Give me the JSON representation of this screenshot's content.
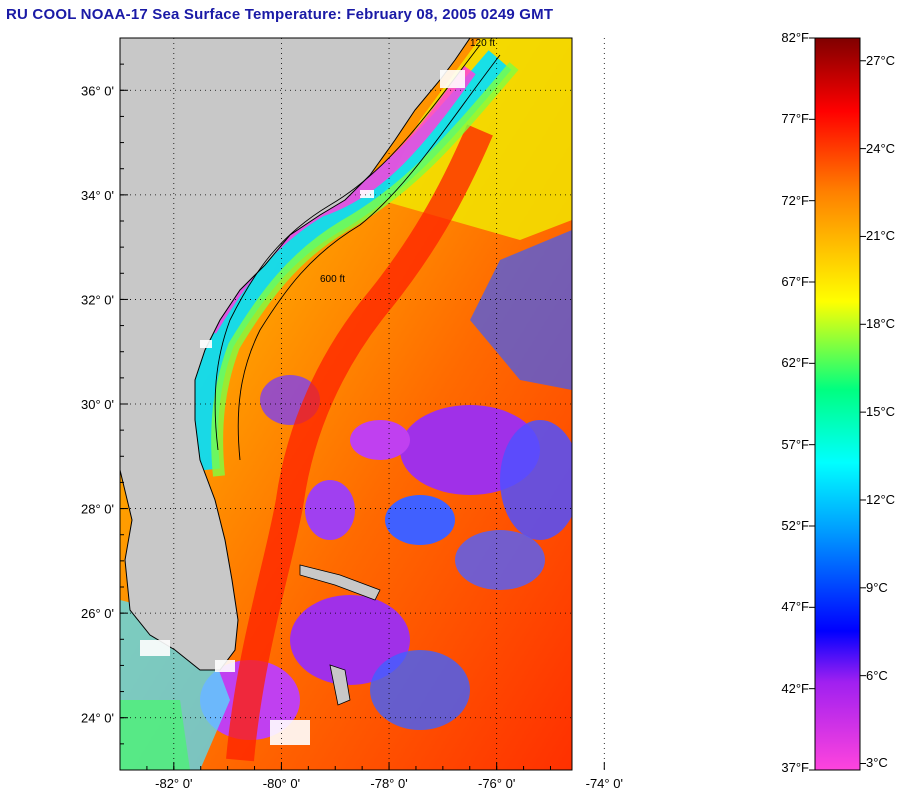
{
  "title": "RU COOL  NOAA-17  Sea Surface Temperature:  February 08, 2005 0249 GMT",
  "map": {
    "lat_ticks": [
      {
        "label": "36° 0'",
        "value": 36
      },
      {
        "label": "34° 0'",
        "value": 34
      },
      {
        "label": "32° 0'",
        "value": 32
      },
      {
        "label": "30° 0'",
        "value": 30
      },
      {
        "label": "28° 0'",
        "value": 28
      },
      {
        "label": "26° 0'",
        "value": 26
      },
      {
        "label": "24° 0'",
        "value": 24
      }
    ],
    "lon_ticks": [
      {
        "label": "-82° 0'",
        "value": -82
      },
      {
        "label": "-80° 0'",
        "value": -80
      },
      {
        "label": "-78° 0'",
        "value": -78
      },
      {
        "label": "-76° 0'",
        "value": -76
      },
      {
        "label": "-74° 0'",
        "value": -74
      }
    ],
    "lat_range": [
      23,
      37
    ],
    "lon_range": [
      -83,
      -74.6
    ],
    "contour_labels": [
      "120 ft",
      "600 ft"
    ],
    "land_color": "#c8c8c8"
  },
  "colorbar": {
    "fahrenheit": [
      "82°F",
      "77°F",
      "72°F",
      "67°F",
      "62°F",
      "57°F",
      "52°F",
      "47°F",
      "42°F",
      "37°F"
    ],
    "celsius": [
      "27°C",
      "24°C",
      "21°C",
      "18°C",
      "15°C",
      "12°C",
      "9°C",
      "6°C",
      "3°C"
    ],
    "fahrenheit_range": [
      37,
      82
    ],
    "gradient_colors": [
      "#ff44dd",
      "#a020f0",
      "#0000ff",
      "#00a0ff",
      "#00ffff",
      "#00ff80",
      "#ffff00",
      "#ff8000",
      "#ff0000",
      "#800000"
    ]
  }
}
